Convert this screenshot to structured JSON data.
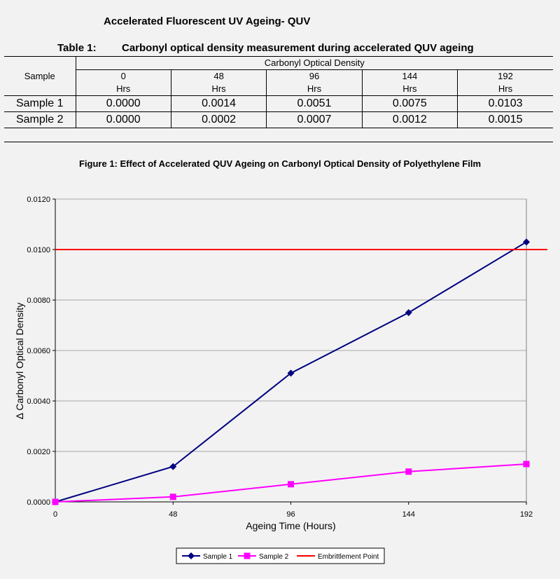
{
  "document": {
    "title": "Accelerated Fluorescent UV Ageing- QUV"
  },
  "table": {
    "caption_number": "Table 1:",
    "caption_text": "Carbonyl optical density measurement during accelerated QUV ageing",
    "sample_header": "Sample",
    "group_header": "Carbonyl Optical Density",
    "columns": [
      {
        "value": "0",
        "unit": "Hrs"
      },
      {
        "value": "48",
        "unit": "Hrs"
      },
      {
        "value": "96",
        "unit": "Hrs"
      },
      {
        "value": "144",
        "unit": "Hrs"
      },
      {
        "value": "192",
        "unit": "Hrs"
      }
    ],
    "rows": [
      {
        "sample": "Sample 1",
        "values": [
          "0.0000",
          "0.0014",
          "0.0051",
          "0.0075",
          "0.0103"
        ]
      },
      {
        "sample": "Sample 2",
        "values": [
          "0.0000",
          "0.0002",
          "0.0007",
          "0.0012",
          "0.0015"
        ]
      }
    ]
  },
  "chart_data": {
    "type": "line",
    "title": "Figure 1: Effect of Accelerated QUV Ageing on Carbonyl Optical Density of Polyethylene Film",
    "xlabel": "Ageing Time (Hours)",
    "ylabel": "Δ Carbonyl Optical Density",
    "x": [
      0,
      48,
      96,
      144,
      192
    ],
    "x_ticks": [
      "0",
      "48",
      "96",
      "144",
      "192"
    ],
    "y_ticks": [
      "0.0000",
      "0.0020",
      "0.0040",
      "0.0060",
      "0.0080",
      "0.0100",
      "0.0120"
    ],
    "xlim": [
      0,
      192
    ],
    "ylim": [
      0,
      0.012
    ],
    "grid": "horizontal",
    "legend_position": "bottom",
    "series": [
      {
        "name": "Sample 1",
        "values": [
          0.0,
          0.0014,
          0.0051,
          0.0075,
          0.0103
        ],
        "color": "#000080",
        "marker": "diamond"
      },
      {
        "name": "Sample 2",
        "values": [
          0.0,
          0.0002,
          0.0007,
          0.0012,
          0.0015
        ],
        "color": "#ff00ff",
        "marker": "square"
      }
    ],
    "reference_line": {
      "name": "Embrittlement Point",
      "value": 0.01,
      "color": "#ff0000"
    }
  }
}
